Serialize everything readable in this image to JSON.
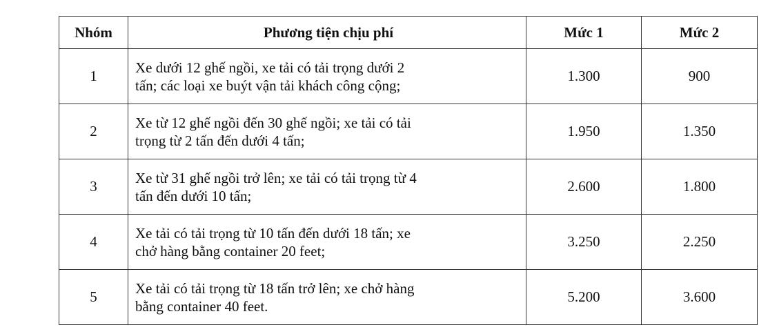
{
  "table": {
    "headers": [
      "Nhóm",
      "Phương tiện chịu phí",
      "Mức 1",
      "Mức 2"
    ],
    "rows": [
      {
        "group": "1",
        "vehicle": [
          "Xe dưới 12 ghế ngồi, xe tải có tải trọng dưới 2",
          "tấn; các loại xe buýt vận tải khách công cộng;"
        ],
        "level1": "1.300",
        "level2": "900"
      },
      {
        "group": "2",
        "vehicle": [
          "Xe từ 12 ghế ngồi đến 30 ghế ngồi; xe tải có tải",
          "trọng từ 2 tấn đến dưới 4 tấn;"
        ],
        "level1": "1.950",
        "level2": "1.350"
      },
      {
        "group": "3",
        "vehicle": [
          "Xe từ 31 ghế ngồi trở lên; xe tải có tải trọng từ 4",
          "tấn đến dưới 10 tấn;"
        ],
        "level1": "2.600",
        "level2": "1.800"
      },
      {
        "group": "4",
        "vehicle": [
          "Xe tải có tải trọng từ 10 tấn đến dưới 18 tấn; xe",
          "chở hàng bằng container 20 feet;"
        ],
        "level1": "3.250",
        "level2": "2.250"
      },
      {
        "group": "5",
        "vehicle": [
          "Xe tải có tải trọng từ 18 tấn trở lên; xe chở hàng",
          "bằng container 40 feet."
        ],
        "level1": "5.200",
        "level2": "3.600"
      }
    ]
  }
}
